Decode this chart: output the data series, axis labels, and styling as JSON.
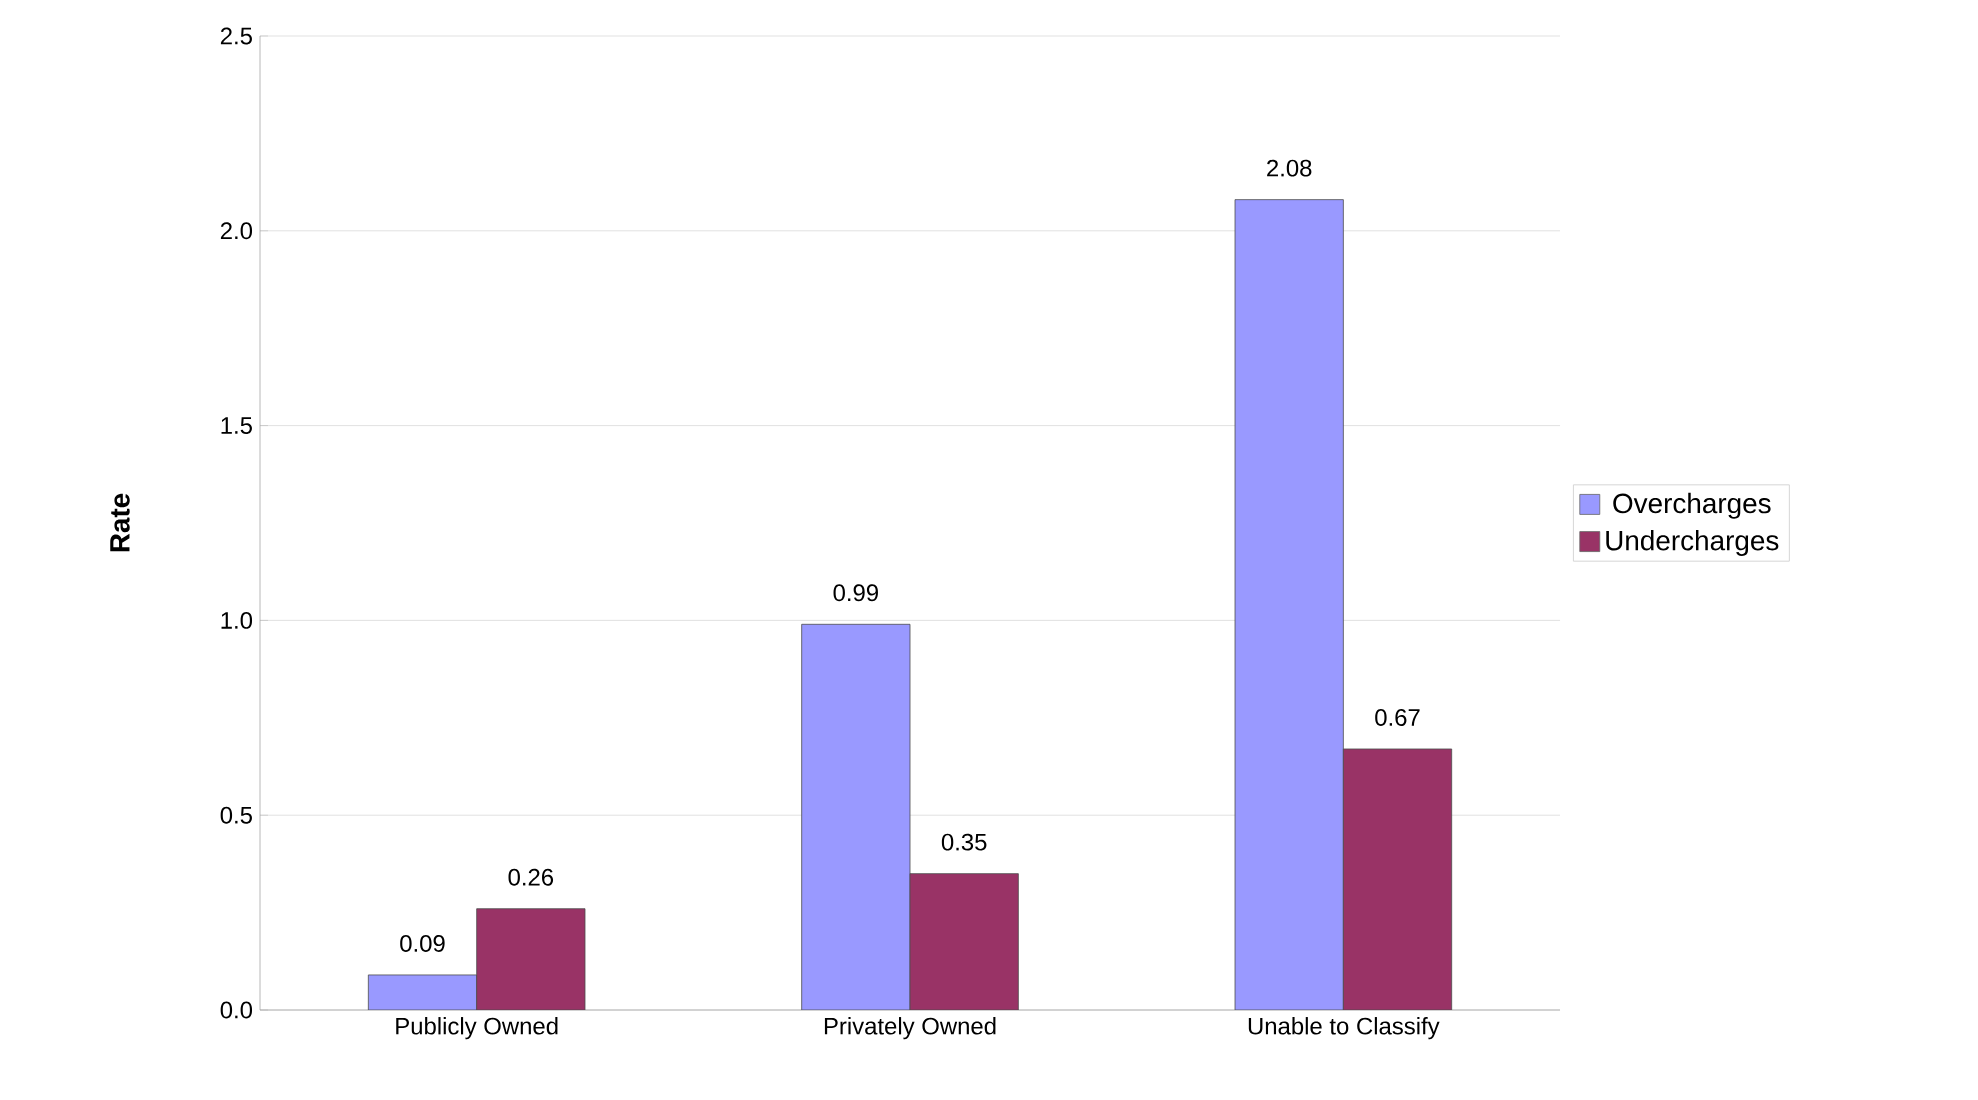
{
  "chart_data": {
    "type": "bar",
    "ylabel": "Rate",
    "categories": [
      "Publicly Owned",
      "Privately Owned",
      "Unable to Classify"
    ],
    "series": [
      {
        "name": "Overcharges",
        "color": "#9999ff",
        "values": [
          0.09,
          0.99,
          2.08
        ]
      },
      {
        "name": "Undercharges",
        "color": "#993366",
        "values": [
          0.26,
          0.35,
          0.67
        ]
      }
    ],
    "ylim": [
      0,
      2.5
    ],
    "yticks": [
      {
        "value": 0,
        "label": "0.0"
      },
      0.5,
      {
        "value": 1,
        "label": "1.0"
      },
      1.5,
      {
        "value": 2,
        "label": "2.0"
      },
      2.5
    ],
    "grid": "y",
    "legend": "right",
    "data_labels": true
  }
}
